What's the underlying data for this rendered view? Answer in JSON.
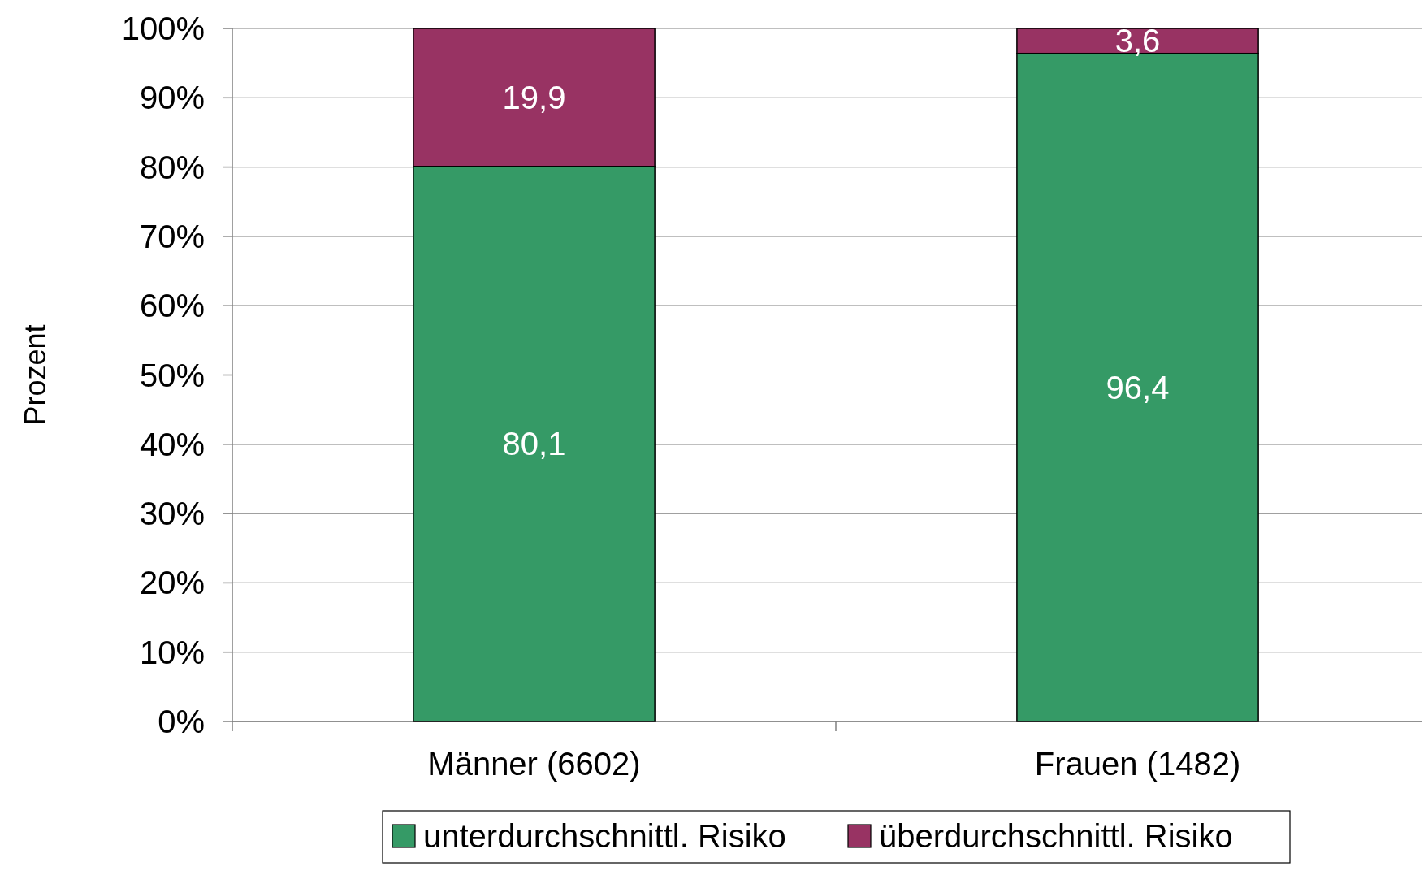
{
  "chart_data": {
    "type": "bar",
    "stacked": true,
    "ylabel": "Prozent",
    "categories": [
      "Männer (6602)",
      "Frauen (1482)"
    ],
    "series": [
      {
        "name": "unterdurchschnittl. Risiko",
        "color": "#359a66",
        "values": [
          80.1,
          96.4
        ],
        "value_labels": [
          "80,1",
          "96,4"
        ]
      },
      {
        "name": "überdurchschnittl. Risiko",
        "color": "#983363",
        "values": [
          19.9,
          3.6
        ],
        "value_labels": [
          "19,9",
          "3,6"
        ]
      }
    ],
    "ylim": [
      0,
      100
    ],
    "yticks": [
      {
        "value": 0,
        "label": "0%"
      },
      {
        "value": 10,
        "label": "10%"
      },
      {
        "value": 20,
        "label": "20%"
      },
      {
        "value": 30,
        "label": "30%"
      },
      {
        "value": 40,
        "label": "40%"
      },
      {
        "value": 50,
        "label": "50%"
      },
      {
        "value": 60,
        "label": "60%"
      },
      {
        "value": 70,
        "label": "70%"
      },
      {
        "value": 80,
        "label": "80%"
      },
      {
        "value": 90,
        "label": "90%"
      },
      {
        "value": 100,
        "label": "100%"
      }
    ],
    "grid": "y",
    "legend": "bottom"
  }
}
